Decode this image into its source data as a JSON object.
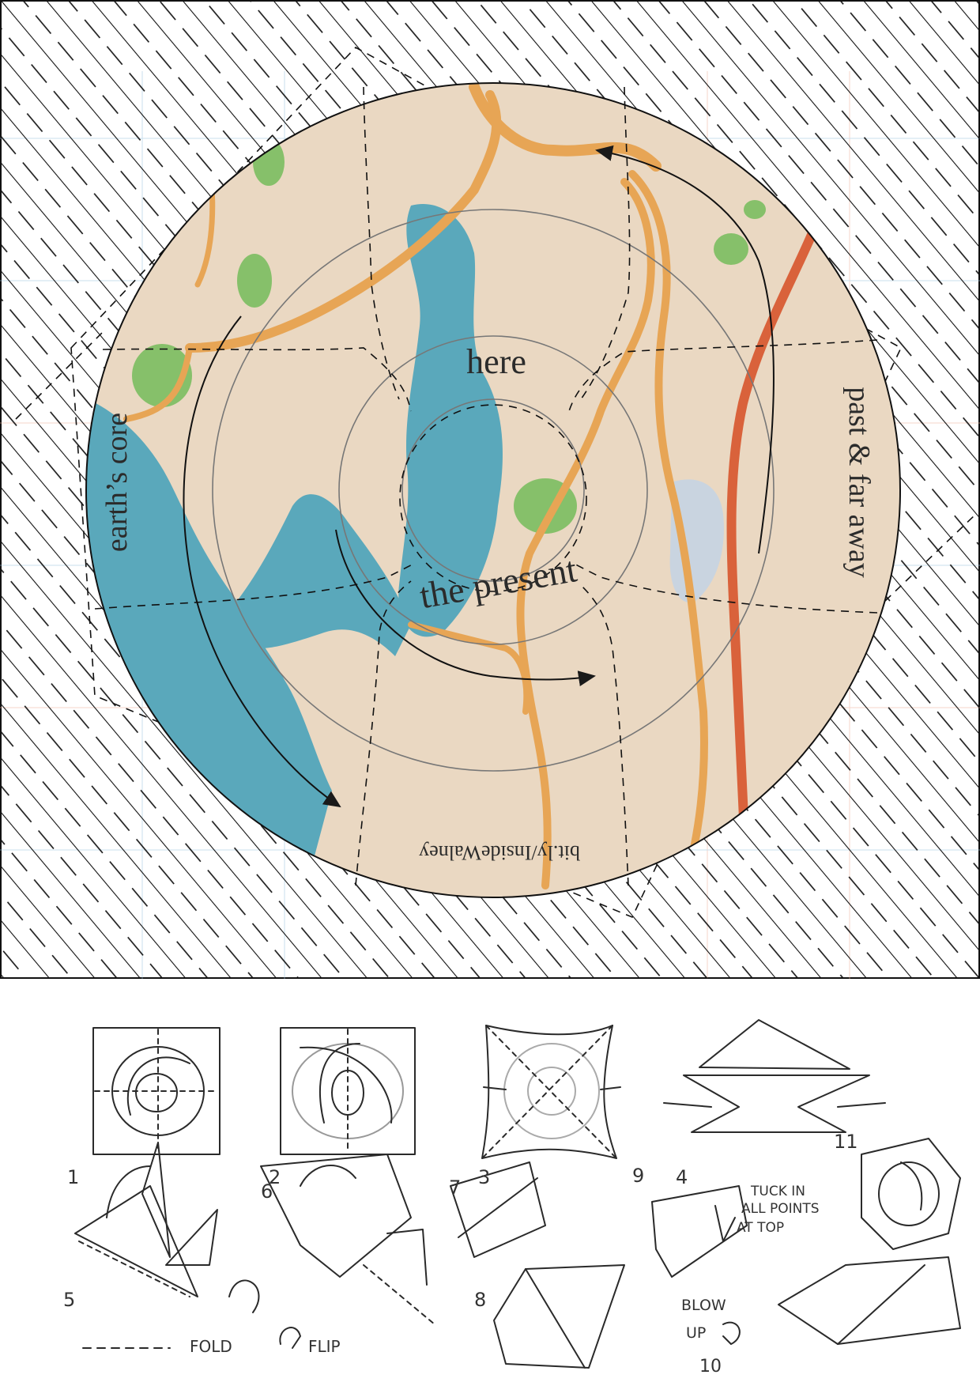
{
  "map": {
    "label_center": "here",
    "label_left": "earth’s core",
    "label_right": "past & far away",
    "label_bottom_arc": "the present",
    "label_url": "bit.ly/InsideWalney",
    "colors": {
      "land": "#ead8c2",
      "water": "#5aa8bb",
      "road": "#e7a555",
      "highway": "#d9623b",
      "park": "#86c06a",
      "line": "#1a1a1a"
    }
  },
  "instructions": {
    "step_numbers": [
      "1",
      "2",
      "3",
      "4",
      "5",
      "6",
      "7",
      "8",
      "9",
      "10",
      "11"
    ],
    "note_tuck": [
      "TUCK IN",
      "ALL POINTS",
      "AT TOP"
    ],
    "note_blow": [
      "BLOW",
      "UP"
    ],
    "legend_fold": "FOLD",
    "legend_flip": "FLIP"
  }
}
